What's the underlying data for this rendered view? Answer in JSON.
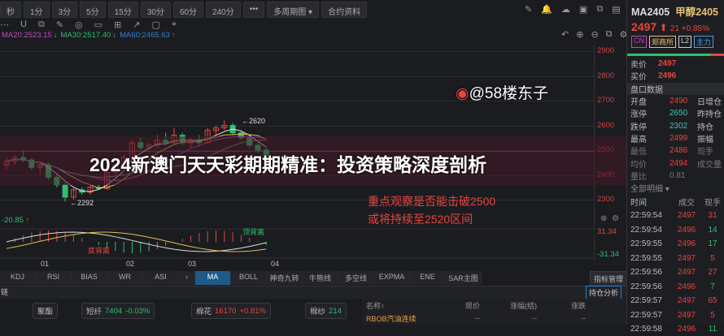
{
  "toolbar": {
    "periods": [
      "秒",
      "1分",
      "3分",
      "5分",
      "15分",
      "30分",
      "60分",
      "240分",
      "•••",
      "多周期图 ▾",
      "合约资料"
    ]
  },
  "tools": [
    "⋯",
    "U",
    "⧉",
    "✎",
    "◎",
    "▭",
    "⊞",
    "↗",
    "▢",
    "⌖"
  ],
  "right_tools": [
    "✎",
    "🔔",
    "☁",
    "▣",
    "⧉",
    "▤",
    "⛶",
    "»"
  ],
  "zoom_tools": [
    "↶",
    "⊕",
    "⊖",
    "⧉",
    "⚙"
  ],
  "ma_line": [
    {
      "text": "MA20:2523.15",
      "color": "#c04ab5",
      "arrow": "↓",
      "arrow_color": "#2fbf71"
    },
    {
      "text": "MA30:2517.40",
      "color": "#2fbf71",
      "arrow": "↓",
      "arrow_color": "#2fbf71"
    },
    {
      "text": "MA60:2465.63",
      "color": "#2f7fd0",
      "arrow": "↑",
      "arrow_color": "#e8453c"
    }
  ],
  "price_axis": [
    "2900",
    "2800",
    "2700",
    "2600",
    "2500",
    "2400",
    "2300"
  ],
  "high_label": "2620",
  "low_label": "2292",
  "candles": [
    [
      2440,
      2470,
      2420,
      2455
    ],
    [
      2455,
      2480,
      2440,
      2470
    ],
    [
      2470,
      2500,
      2450,
      2460
    ],
    [
      2460,
      2470,
      2420,
      2430
    ],
    [
      2430,
      2450,
      2400,
      2440
    ],
    [
      2440,
      2450,
      2380,
      2390
    ],
    [
      2390,
      2400,
      2350,
      2360
    ],
    [
      2360,
      2370,
      2292,
      2310
    ],
    [
      2310,
      2345,
      2300,
      2340
    ],
    [
      2340,
      2350,
      2320,
      2330
    ],
    [
      2330,
      2355,
      2320,
      2350
    ],
    [
      2350,
      2360,
      2340,
      2345
    ],
    [
      2345,
      2420,
      2340,
      2410
    ],
    [
      2410,
      2450,
      2400,
      2440
    ],
    [
      2440,
      2480,
      2430,
      2470
    ],
    [
      2470,
      2540,
      2460,
      2530
    ],
    [
      2530,
      2550,
      2500,
      2510
    ],
    [
      2510,
      2530,
      2490,
      2520
    ],
    [
      2520,
      2560,
      2510,
      2540
    ],
    [
      2540,
      2570,
      2520,
      2530
    ],
    [
      2530,
      2590,
      2520,
      2560
    ],
    [
      2560,
      2570,
      2520,
      2530
    ],
    [
      2530,
      2550,
      2510,
      2540
    ],
    [
      2540,
      2560,
      2520,
      2530
    ],
    [
      2530,
      2590,
      2525,
      2580
    ],
    [
      2580,
      2600,
      2560,
      2590
    ],
    [
      2590,
      2620,
      2580,
      2600
    ],
    [
      2600,
      2610,
      2560,
      2570
    ],
    [
      2570,
      2580,
      2540,
      2550
    ],
    [
      2550,
      2560,
      2510,
      2520
    ],
    [
      2520,
      2530,
      2490,
      2500
    ],
    [
      2500,
      2510,
      2470,
      2480
    ]
  ],
  "notes": [
    "重点观察是否能击破2500",
    "或将持续至2520区间"
  ],
  "headline": "2024新澳门天天彩期期精准：投资策略深度剖析",
  "indicator": {
    "value": "-20.85",
    "upper": "31.34",
    "lower": "-31.34",
    "label_top": "顶背离",
    "label_bottom": "底背离"
  },
  "dates": [
    "01",
    "02",
    "03",
    "04"
  ],
  "tabs": [
    "KDJ",
    "RSI",
    "BIAS",
    "WR",
    "ASI",
    "›",
    "MA",
    "BOLL",
    "神奇九转",
    "牛熊线",
    "多空线",
    "EXPMA",
    "ENE",
    "SAR主图"
  ],
  "active_tab": "MA",
  "indicator_manage": "指标管理",
  "chain_label": "链",
  "position_analysis": "持仓分析",
  "flow": [
    {
      "name": "聚酯"
    },
    {
      "name": "短纤",
      "price": "7404",
      "chg": "-0.03%",
      "color": "#2fbf71"
    },
    {
      "name": "棉花",
      "price": "16170",
      "chg": "+0.81%",
      "color": "#e8453c"
    },
    {
      "name": "棉纱",
      "price": "214"
    }
  ],
  "table": {
    "headers": [
      "名称↑",
      "现价",
      "涨幅(结)",
      "涨跌"
    ],
    "rows": [
      [
        "RBOB汽油连续",
        "--",
        "--",
        "--"
      ]
    ]
  },
  "quote": {
    "code": "MA2405",
    "name": "甲醇2405",
    "price": "2497",
    "change": "21",
    "pct": "+0.85%",
    "tags": [
      "CN",
      "郑商所",
      "L2",
      "主力"
    ],
    "ask_label": "卖价",
    "ask": "2497",
    "bid_label": "买价",
    "bid": "2496",
    "section": "盘口数据",
    "stats": [
      [
        "开盘",
        "2490",
        "日增仓"
      ],
      [
        "涨停",
        "2650",
        "昨持仓"
      ],
      [
        "跌停",
        "2302",
        "持仓"
      ],
      [
        "最高",
        "2499",
        "振幅"
      ],
      [
        "最低",
        "2486",
        "现手"
      ],
      [
        "均价",
        "2494",
        "成交量"
      ]
    ],
    "vol_ratio_label": "量比",
    "vol_ratio": "0.81",
    "detail": "全部明细 ▾",
    "trade_headers": [
      "时间",
      "成交",
      "现手"
    ],
    "trades": [
      [
        "22:59:54",
        "2497",
        "31",
        "r"
      ],
      [
        "22:59:54",
        "2496",
        "14",
        "g"
      ],
      [
        "22:59:55",
        "2496",
        "17",
        "g"
      ],
      [
        "22:59:55",
        "2497",
        "5",
        "r"
      ],
      [
        "22:59:56",
        "2497",
        "27",
        "r"
      ],
      [
        "22:59:56",
        "2496",
        "7",
        "g"
      ],
      [
        "22:59:57",
        "2497",
        "65",
        "r"
      ],
      [
        "22:59:57",
        "2497",
        "5",
        "r"
      ],
      [
        "22:59:58",
        "2496",
        "11",
        "g"
      ]
    ]
  },
  "watermark": "@58楼东子",
  "colors": {
    "up": "#e8453c",
    "down": "#2fbf71",
    "accent": "#1e5a8a"
  }
}
